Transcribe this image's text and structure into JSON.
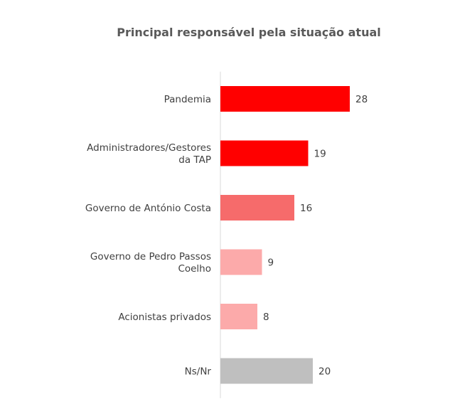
{
  "chart_data": {
    "type": "bar",
    "orientation": "horizontal",
    "title": "Principal responsável pela situação atual",
    "categories": [
      "Pandemia",
      "Administradores/Gestores da TAP",
      "Governo de António Costa",
      "Governo de Pedro Passos Coelho",
      "Acionistas privados",
      "Ns/Nr"
    ],
    "category_lines": [
      [
        "Pandemia"
      ],
      [
        "Administradores/Gestores",
        "da TAP"
      ],
      [
        "Governo de António Costa"
      ],
      [
        "Governo de Pedro Passos",
        "Coelho"
      ],
      [
        "Acionistas privados"
      ],
      [
        "Ns/Nr"
      ]
    ],
    "values": [
      28,
      19,
      16,
      9,
      8,
      20
    ],
    "colors": [
      "#ff0000",
      "#ff0000",
      "#f66b6b",
      "#fcaaaa",
      "#fcaaaa",
      "#bfbfbf"
    ],
    "xlabel": "",
    "ylabel": "",
    "grid": false,
    "legend": "none"
  }
}
